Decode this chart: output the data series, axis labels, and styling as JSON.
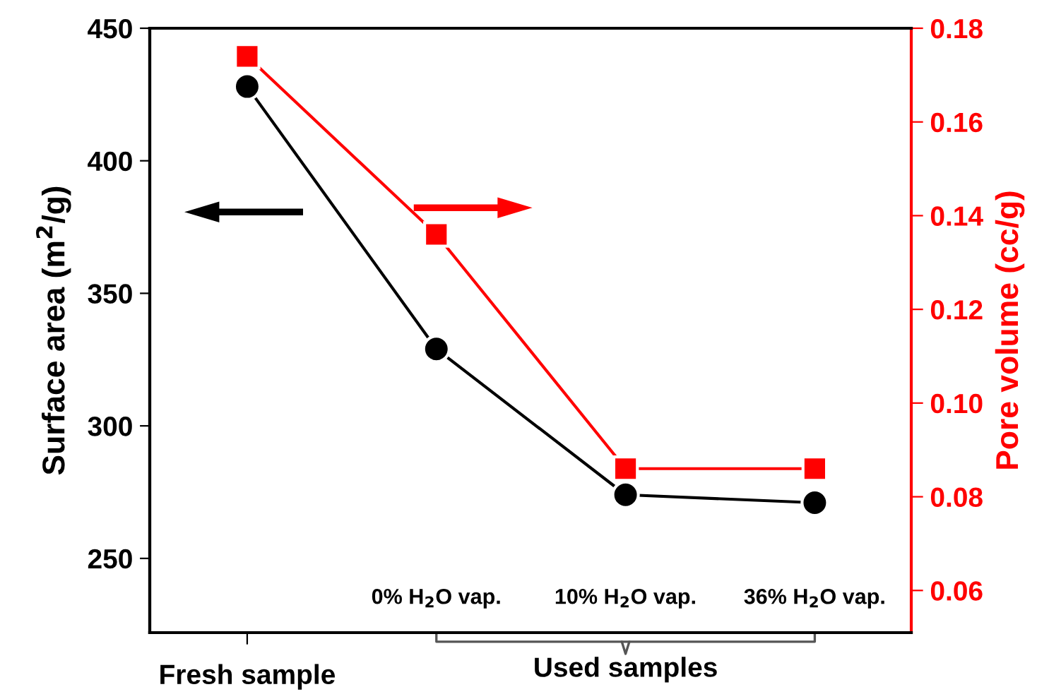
{
  "chart_data": {
    "type": "line",
    "categories": [
      "Fresh sample",
      "0% H$_{2}$O vap.",
      "10% H$_{2}$O vap.",
      "36% H$_{2}$O vap."
    ],
    "series": [
      {
        "color": "#000000",
        "marker": "circle",
        "values": [
          428,
          329,
          274,
          271
        ]
      },
      {
        "color": "#ff0000",
        "marker": "square",
        "axis": "y2",
        "values": [
          0.174,
          0.136,
          0.086,
          0.086
        ]
      }
    ],
    "ylabel": "Surface area (m$^{2}$/g)",
    "y2label": "Pore volume (cc/g)",
    "ylim": [
      222,
      450
    ],
    "yticks": [
      250,
      300,
      350,
      400,
      450
    ],
    "y2lim": [
      0.051,
      0.18
    ],
    "y2ticks": [
      0.06,
      0.08,
      {
        "value": 0.1,
        "label": "0.10"
      },
      0.12,
      0.14,
      0.16,
      0.18
    ],
    "annotations": [
      "Used samples"
    ],
    "grid": false,
    "legend": false
  }
}
